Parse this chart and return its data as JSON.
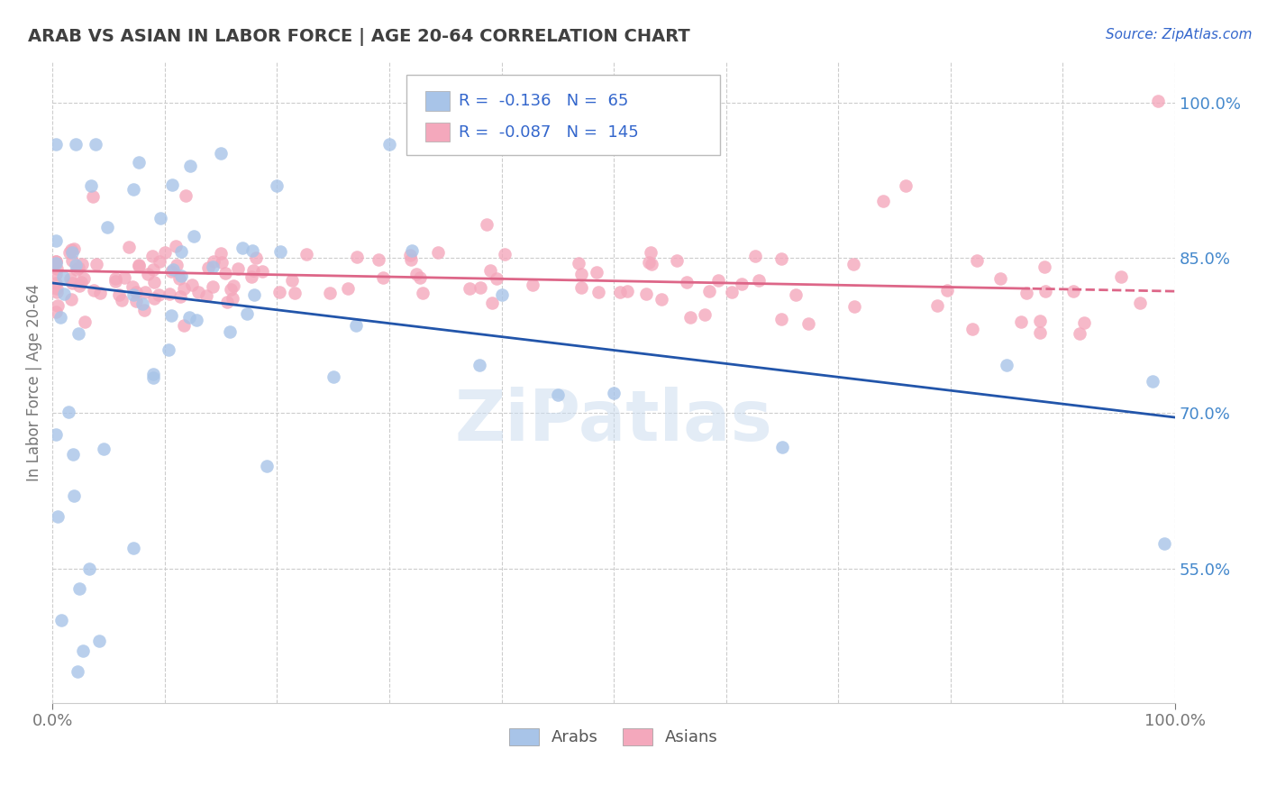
{
  "title": "ARAB VS ASIAN IN LABOR FORCE | AGE 20-64 CORRELATION CHART",
  "source_text": "Source: ZipAtlas.com",
  "ylabel": "In Labor Force | Age 20-64",
  "xlim": [
    0.0,
    1.0
  ],
  "ylim": [
    0.42,
    1.04
  ],
  "y_tick_labels_right": [
    "55.0%",
    "70.0%",
    "85.0%",
    "100.0%"
  ],
  "y_tick_vals_right": [
    0.55,
    0.7,
    0.85,
    1.0
  ],
  "arab_R": -0.136,
  "arab_N": 65,
  "asian_R": -0.087,
  "asian_N": 145,
  "arab_color": "#a8c4e8",
  "asian_color": "#f4a8bc",
  "arab_line_color": "#2255aa",
  "asian_line_color": "#dd6688",
  "background_color": "#ffffff",
  "grid_color": "#cccccc",
  "title_color": "#404040",
  "axis_label_color": "#777777",
  "right_tick_color": "#4488cc",
  "watermark": "ZiPatlas",
  "legend_color": "#3366cc"
}
